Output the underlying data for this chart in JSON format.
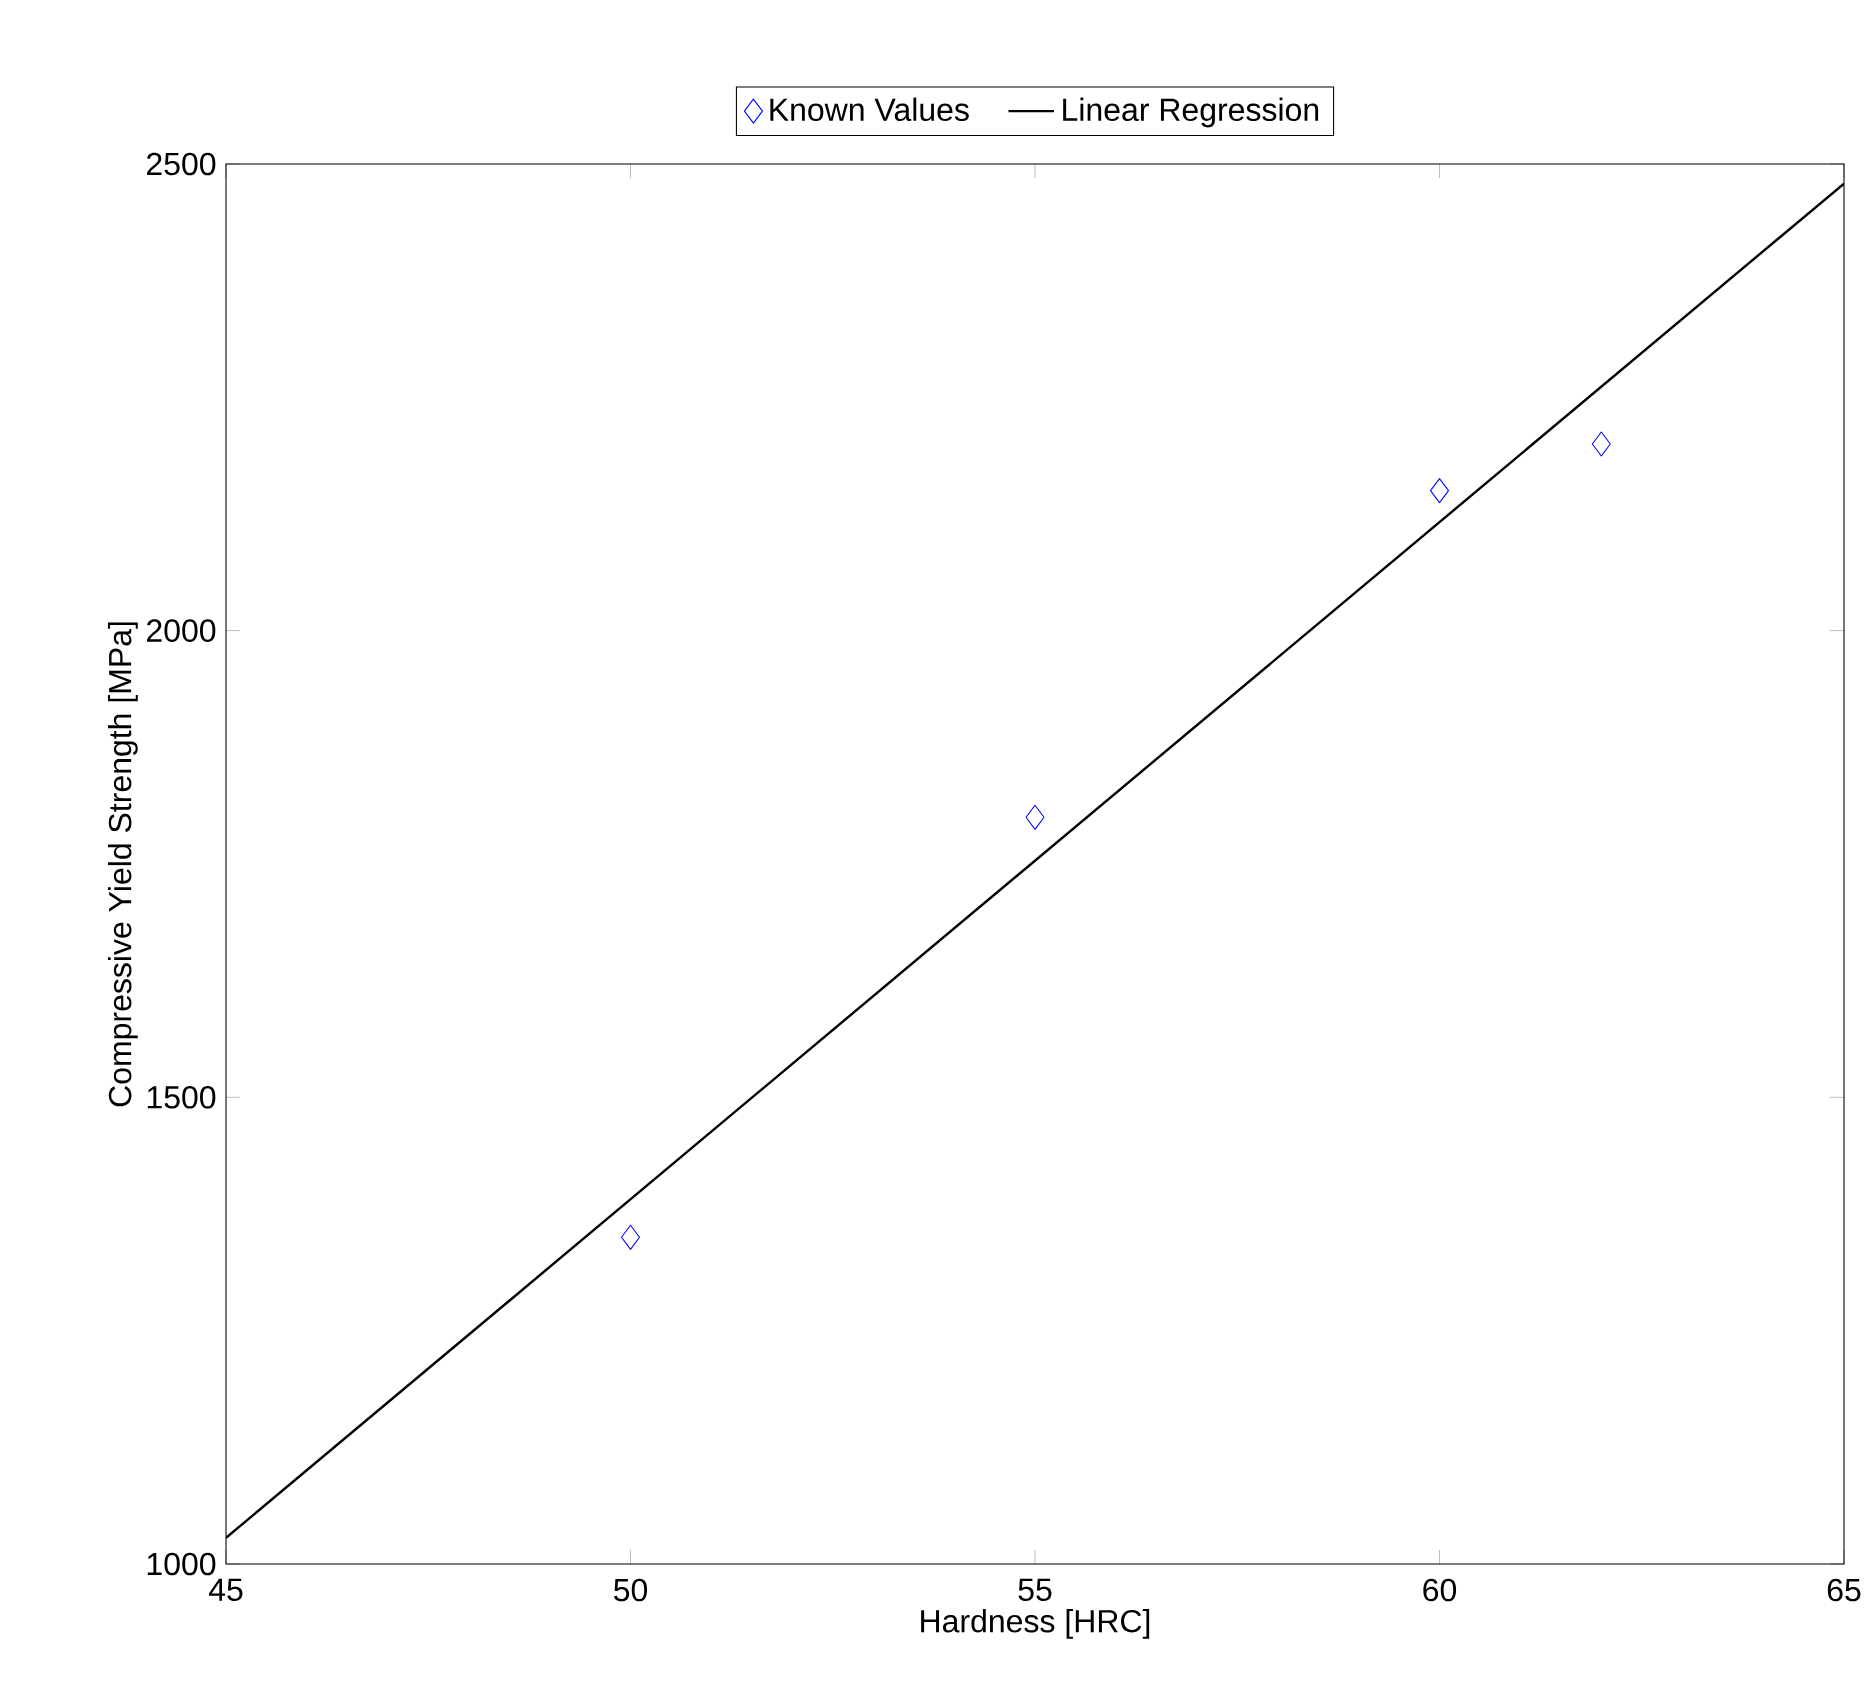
{
  "chart_data": {
    "type": "scatter",
    "xlabel": "Hardness [HRC]",
    "ylabel": "Compressive Yield Strength [MPa]",
    "xlim": [
      45,
      65
    ],
    "ylim": [
      1000,
      2500
    ],
    "xticks": [
      45,
      50,
      55,
      60,
      65
    ],
    "yticks": [
      1000,
      1500,
      2000,
      2500
    ],
    "grid": false,
    "legend": "top",
    "series": [
      {
        "name": "Known Values",
        "marker": "diamond",
        "color": "#0000ff",
        "x": [
          50,
          55,
          60,
          62
        ],
        "values": [
          1350,
          1800,
          2150,
          2200
        ]
      },
      {
        "name": "Linear Regression",
        "type": "line",
        "marker": "none",
        "line_style": "solid",
        "color": "#000000",
        "x": [
          45,
          65
        ],
        "values": [
          1028,
          2479
        ]
      }
    ]
  }
}
